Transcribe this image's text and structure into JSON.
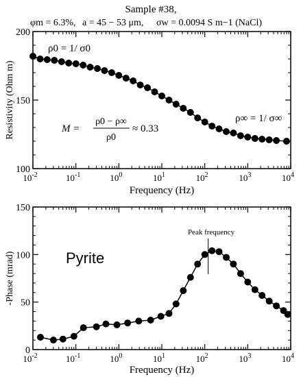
{
  "header": {
    "line1": "Sample #38,",
    "line2_phi": "φm = 6.3%,",
    "line2_a": "a = 45 − 53 μm,",
    "line2_sigma": "σw = 0.0094 S m−1 (NaCl)"
  },
  "chart_data": [
    {
      "type": "scatter",
      "title": "",
      "xlabel": "Frequency (Hz)",
      "ylabel": "Resistivity (Ohm m)",
      "xscale": "log",
      "xlim": [
        0.01,
        10000
      ],
      "ylim": [
        100,
        200
      ],
      "xticks": [
        0.01,
        0.1,
        1,
        10,
        100,
        1000,
        10000
      ],
      "xtick_labels": [
        "10-2",
        "10-1",
        "100",
        "101",
        "102",
        "103",
        "104"
      ],
      "yticks": [
        100,
        150,
        200
      ],
      "ytick_labels": [
        "100",
        "150",
        "200"
      ],
      "grid": false,
      "line": true,
      "color": "#000000",
      "annotations": {
        "rho0": "ρ0 = 1/ σ0",
        "rhoinf": "ρ∞ = 1/ σ∞",
        "m_formula_lhs": "M =",
        "m_formula_num": "ρ0 − ρ∞",
        "m_formula_den": "ρ0",
        "m_formula_rhs": "≈ 0.33"
      },
      "x": [
        0.01,
        0.0147,
        0.0215,
        0.0316,
        0.0464,
        0.0681,
        0.1,
        0.147,
        0.215,
        0.316,
        0.464,
        0.681,
        1.0,
        1.47,
        2.15,
        3.16,
        4.64,
        6.81,
        10.0,
        14.7,
        21.5,
        31.6,
        46.4,
        68.1,
        100,
        147,
        215,
        316,
        464,
        681,
        1000,
        1470,
        2150,
        3160,
        4640,
        8000
      ],
      "y": [
        182,
        180,
        179.5,
        179,
        178,
        177,
        176.5,
        175.5,
        174,
        173,
        171.5,
        170,
        168,
        166,
        164,
        161,
        159,
        156,
        153,
        150,
        147,
        144,
        141,
        137,
        134,
        131,
        129,
        127,
        126,
        124,
        123,
        122,
        121.5,
        121,
        120.5,
        120
      ]
    },
    {
      "type": "scatter",
      "title": "",
      "xlabel": "Frequency (Hz)",
      "ylabel": "-Phase (mrad)",
      "xscale": "log",
      "xlim": [
        0.01,
        10000
      ],
      "ylim": [
        0,
        150
      ],
      "xticks": [
        0.01,
        0.1,
        1,
        10,
        100,
        1000,
        10000
      ],
      "xtick_labels": [
        "10-2",
        "10-1",
        "100",
        "101",
        "102",
        "103",
        "104"
      ],
      "yticks": [
        0,
        50,
        100,
        150
      ],
      "ytick_labels": [
        "0",
        "50",
        "100",
        "150"
      ],
      "grid": false,
      "line": true,
      "color": "#000000",
      "annotations": {
        "peak_label": "Peak frequency",
        "peak_x": 120,
        "mineral": "Pyrite"
      },
      "x": [
        0.015,
        0.03,
        0.05,
        0.09,
        0.15,
        0.3,
        0.5,
        0.9,
        1.6,
        2.9,
        5.5,
        9.5,
        14.7,
        21.5,
        31.6,
        46.4,
        68.1,
        100,
        147,
        215,
        316,
        464,
        681,
        1000,
        1470,
        2150,
        3160,
        4640,
        6810,
        8500
      ],
      "y": [
        13,
        10,
        11,
        14,
        23,
        24,
        27,
        26,
        28,
        30,
        31,
        35,
        38,
        48,
        62,
        76,
        90,
        100,
        104,
        103,
        97,
        90,
        80,
        71,
        63,
        57,
        51,
        46,
        41,
        37
      ]
    }
  ]
}
